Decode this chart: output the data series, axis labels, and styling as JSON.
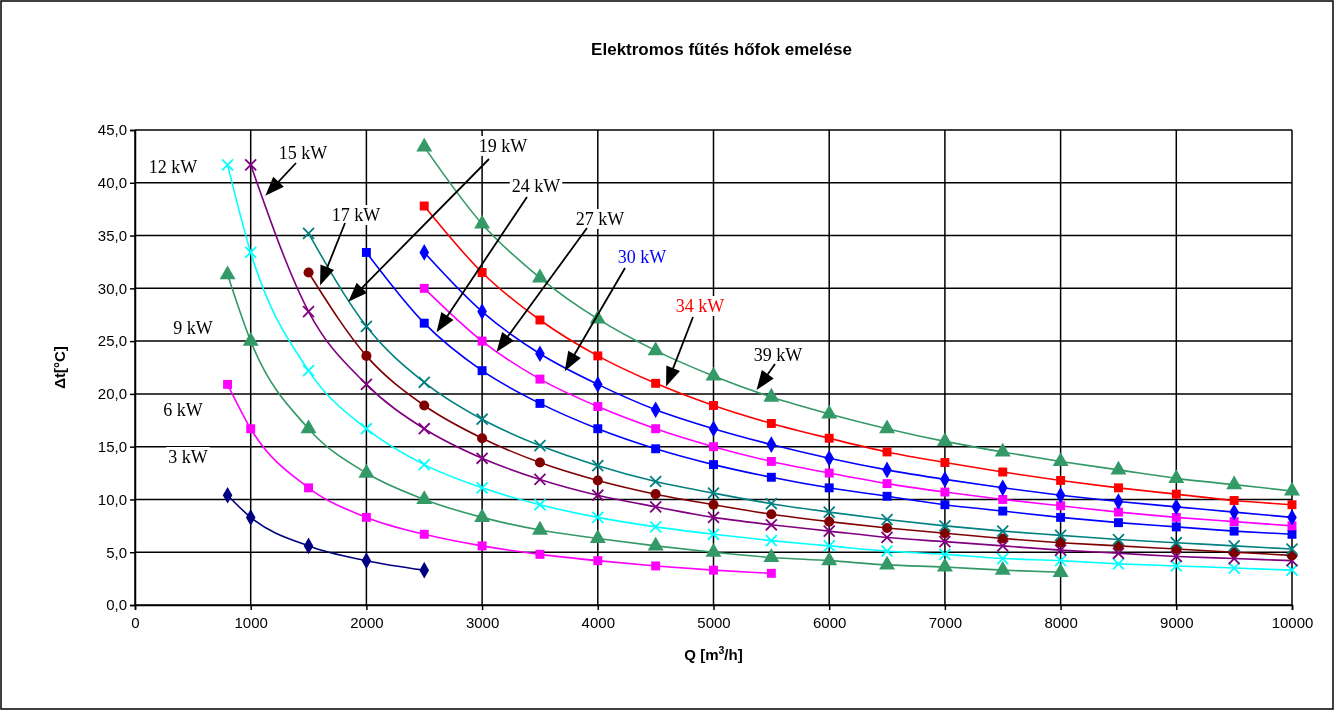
{
  "chart_data": {
    "type": "line",
    "title": "Elektromos fűtés hőfok emelése",
    "xlabel": "Q [m$^{3}$/h]",
    "ylabel": "Δt[°C]",
    "xlim": [
      0,
      10000
    ],
    "xticks": [
      0,
      1000,
      2000,
      3000,
      4000,
      5000,
      6000,
      7000,
      8000,
      9000,
      10000
    ],
    "ylim": [
      0,
      45
    ],
    "yticks": [
      {
        "value": 0,
        "label": "0,0"
      },
      {
        "value": 5,
        "label": "5,0"
      },
      {
        "value": 10,
        "label": "10,0"
      },
      {
        "value": 15,
        "label": "15,0"
      },
      {
        "value": 20,
        "label": "20,0"
      },
      {
        "value": 25,
        "label": "25,0"
      },
      {
        "value": 30,
        "label": "30,0"
      },
      {
        "value": 35,
        "label": "35,0"
      },
      {
        "value": 40,
        "label": "40,0"
      },
      {
        "value": 45,
        "label": "45,0"
      }
    ],
    "grid": true,
    "legend": false,
    "series": [
      {
        "name": "3 kW",
        "color": "#000080",
        "marker": "diamond",
        "x": [
          800,
          1000,
          1500,
          2000,
          2500
        ],
        "values": [
          10.4,
          8.3,
          5.6,
          4.2,
          3.3
        ]
      },
      {
        "name": "6 kW",
        "color": "#ff00ff",
        "marker": "square",
        "x": [
          800,
          1000,
          1500,
          2000,
          2500,
          3000,
          3500,
          4000,
          4500,
          5000,
          5500
        ],
        "values": [
          20.9,
          16.7,
          11.1,
          8.3,
          6.7,
          5.6,
          4.8,
          4.2,
          3.7,
          3.3,
          3.0
        ]
      },
      {
        "name": "9 kW",
        "color": "#339966",
        "marker": "triangle",
        "x": [
          800,
          1000,
          1500,
          2000,
          2500,
          3000,
          3500,
          4000,
          4500,
          5000,
          5500,
          6000,
          6500,
          7000,
          7500,
          8000
        ],
        "values": [
          31.3,
          25.0,
          16.7,
          12.5,
          10.0,
          8.3,
          7.1,
          6.3,
          5.6,
          5.0,
          4.5,
          4.2,
          3.8,
          3.6,
          3.3,
          3.1
        ]
      },
      {
        "name": "12 kW",
        "color": "#00ffff",
        "marker": "cross",
        "x": [
          800,
          1000,
          1500,
          2000,
          2500,
          3000,
          3500,
          4000,
          4500,
          5000,
          5500,
          6000,
          6500,
          7000,
          7500,
          8000,
          8500,
          9000,
          9500,
          10000
        ],
        "values": [
          41.7,
          33.4,
          22.2,
          16.7,
          13.3,
          11.1,
          9.5,
          8.3,
          7.4,
          6.7,
          6.1,
          5.6,
          5.1,
          4.8,
          4.4,
          4.2,
          3.9,
          3.7,
          3.5,
          3.3
        ]
      },
      {
        "name": "15 kW",
        "color": "#800080",
        "marker": "cross",
        "x": [
          1000,
          1500,
          2000,
          2500,
          3000,
          3500,
          4000,
          4500,
          5000,
          5500,
          6000,
          6500,
          7000,
          7500,
          8000,
          8500,
          9000,
          9500,
          10000
        ],
        "values": [
          41.7,
          27.8,
          20.9,
          16.7,
          13.9,
          11.9,
          10.4,
          9.3,
          8.3,
          7.6,
          7.0,
          6.4,
          6.0,
          5.6,
          5.2,
          4.9,
          4.6,
          4.4,
          4.2
        ]
      },
      {
        "name": "17 kW",
        "color": "#800000",
        "marker": "circle",
        "x": [
          1500,
          2000,
          2500,
          3000,
          3500,
          4000,
          4500,
          5000,
          5500,
          6000,
          6500,
          7000,
          7500,
          8000,
          8500,
          9000,
          9500,
          10000
        ],
        "values": [
          31.5,
          23.6,
          18.9,
          15.8,
          13.5,
          11.8,
          10.5,
          9.5,
          8.6,
          7.9,
          7.3,
          6.8,
          6.3,
          5.9,
          5.6,
          5.3,
          5.0,
          4.7
        ]
      },
      {
        "name": "19 kW",
        "color": "#008080",
        "marker": "cross",
        "x": [
          1500,
          2000,
          2500,
          3000,
          3500,
          4000,
          4500,
          5000,
          5500,
          6000,
          6500,
          7000,
          7500,
          8000,
          8500,
          9000,
          9500,
          10000
        ],
        "values": [
          35.2,
          26.4,
          21.1,
          17.6,
          15.1,
          13.2,
          11.7,
          10.6,
          9.6,
          8.8,
          8.1,
          7.5,
          7.0,
          6.6,
          6.2,
          5.9,
          5.6,
          5.3
        ]
      },
      {
        "name": "24 kW",
        "color": "#0000ff",
        "marker": "square",
        "x": [
          2000,
          2500,
          3000,
          3500,
          4000,
          4500,
          5000,
          5500,
          6000,
          6500,
          7000,
          7500,
          8000,
          8500,
          9000,
          9500,
          10000
        ],
        "values": [
          33.4,
          26.7,
          22.2,
          19.1,
          16.7,
          14.8,
          13.3,
          12.1,
          11.1,
          10.3,
          9.5,
          8.9,
          8.3,
          7.8,
          7.4,
          7.0,
          6.7
        ]
      },
      {
        "name": "27 kW",
        "color": "#ff00ff",
        "marker": "square",
        "x": [
          2500,
          3000,
          3500,
          4000,
          4500,
          5000,
          5500,
          6000,
          6500,
          7000,
          7500,
          8000,
          8500,
          9000,
          9500,
          10000
        ],
        "values": [
          30.0,
          25.0,
          21.4,
          18.8,
          16.7,
          15.0,
          13.6,
          12.5,
          11.5,
          10.7,
          10.0,
          9.4,
          8.8,
          8.3,
          7.9,
          7.5
        ]
      },
      {
        "name": "30 kW",
        "color": "#0000ff",
        "marker": "diamond",
        "x": [
          2500,
          3000,
          3500,
          4000,
          4500,
          5000,
          5500,
          6000,
          6500,
          7000,
          7500,
          8000,
          8500,
          9000,
          9500,
          10000
        ],
        "values": [
          33.4,
          27.8,
          23.8,
          20.9,
          18.5,
          16.7,
          15.2,
          13.9,
          12.8,
          11.9,
          11.1,
          10.4,
          9.8,
          9.3,
          8.8,
          8.3
        ]
      },
      {
        "name": "34 kW",
        "color": "#ff0000",
        "marker": "square",
        "x": [
          2500,
          3000,
          3500,
          4000,
          4500,
          5000,
          5500,
          6000,
          6500,
          7000,
          7500,
          8000,
          8500,
          9000,
          9500,
          10000
        ],
        "values": [
          37.8,
          31.5,
          27.0,
          23.6,
          21.0,
          18.9,
          17.2,
          15.8,
          14.5,
          13.5,
          12.6,
          11.8,
          11.1,
          10.5,
          9.9,
          9.5
        ]
      },
      {
        "name": "39 kW",
        "color": "#339966",
        "marker": "triangle",
        "x": [
          2500,
          3000,
          3500,
          4000,
          4500,
          5000,
          5500,
          6000,
          6500,
          7000,
          7500,
          8000,
          8500,
          9000,
          9500,
          10000
        ],
        "values": [
          43.4,
          36.1,
          31.0,
          27.1,
          24.1,
          21.7,
          19.7,
          18.1,
          16.7,
          15.5,
          14.5,
          13.6,
          12.8,
          12.0,
          11.4,
          10.8
        ]
      }
    ]
  }
}
